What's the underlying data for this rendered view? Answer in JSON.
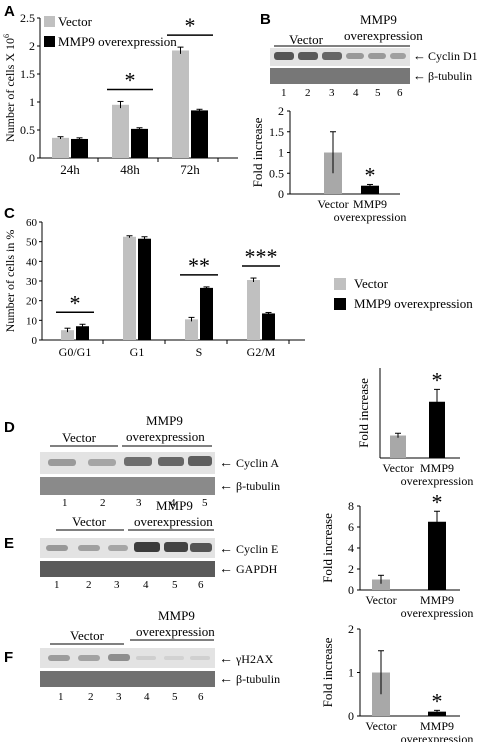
{
  "panels": {
    "A": {
      "letter": "A"
    },
    "B": {
      "letter": "B",
      "lanes": [
        "1",
        "2",
        "3",
        "4",
        "5",
        "6"
      ],
      "group1": "Vector",
      "group2_line1": "MMP9",
      "group2_line2": "overexpression",
      "band1_label": "Cyclin D1",
      "band2_label": "β-tubulin"
    },
    "C": {
      "letter": "C"
    },
    "D": {
      "letter": "D",
      "lanes": [
        "1",
        "2",
        "3",
        "4",
        "5"
      ],
      "group1": "Vector",
      "group2_line1": "MMP9",
      "group2_line2": "overexpression",
      "band1_label": "Cyclin A",
      "band2_label": "β-tubulin"
    },
    "E": {
      "letter": "E",
      "lanes": [
        "1",
        "2",
        "3",
        "4",
        "5",
        "6"
      ],
      "group1": "Vector",
      "group2_line1": "MMP9",
      "group2_line2": "overexpression",
      "band1_label": "Cyclin E",
      "band2_label": "GAPDH"
    },
    "F": {
      "letter": "F",
      "lanes": [
        "1",
        "2",
        "3",
        "4",
        "5",
        "6"
      ],
      "group1": "Vector",
      "group2_line1": "MMP9",
      "group2_line2": "overexpression",
      "band1_label": "γH2AX",
      "band2_label": "β-tubulin"
    }
  },
  "colors": {
    "vector": "#c0c0c0",
    "mmp9": "#000000",
    "vector_small": "#a8a8a8"
  },
  "chart_data": [
    {
      "id": "A",
      "type": "bar",
      "categories": [
        "24h",
        "48h",
        "72h"
      ],
      "series": [
        {
          "name": "Vector",
          "values": [
            0.36,
            0.95,
            1.92
          ],
          "errors": [
            0.02,
            0.06,
            0.06
          ]
        },
        {
          "name": "MMP9 overexpression",
          "values": [
            0.34,
            0.52,
            0.85
          ],
          "errors": [
            0.02,
            0.02,
            0.02
          ]
        }
      ],
      "ylabel_prefix": "Number of cells X 10",
      "ylabel_sup": "6",
      "ylim": [
        0,
        2.5
      ],
      "yticks": [
        "0",
        "0.5",
        "1",
        "1.5",
        "2",
        "2.5"
      ],
      "significance": [
        "",
        "*",
        "*"
      ],
      "legend": "top-left"
    },
    {
      "id": "B",
      "type": "bar",
      "categories_line1": [
        "Vector",
        "MMP9"
      ],
      "categories_line2": [
        "",
        "overexpression"
      ],
      "values": [
        1.0,
        0.2
      ],
      "errors": [
        0.5,
        0.03
      ],
      "ylabel": "Fold increase",
      "ylim": [
        0,
        2
      ],
      "yticks": [
        "0",
        "0.5",
        "1",
        "1.5",
        "2"
      ],
      "significance": [
        "",
        "*"
      ]
    },
    {
      "id": "C",
      "type": "bar",
      "categories": [
        "G0/G1",
        "G1",
        "S",
        "G2/M"
      ],
      "series": [
        {
          "name": "Vector",
          "values": [
            5,
            52.5,
            10.5,
            30.5
          ],
          "errors": [
            1.0,
            0.5,
            1.0,
            1.0
          ]
        },
        {
          "name": "MMP9 overexpression",
          "values": [
            7,
            51.5,
            26.5,
            13.5
          ],
          "errors": [
            1.0,
            1.0,
            0.5,
            0.5
          ]
        }
      ],
      "ylabel": "Number of cells in %",
      "ylim": [
        0,
        60
      ],
      "yticks": [
        "0",
        "10",
        "20",
        "30",
        "40",
        "50",
        "60"
      ],
      "significance": [
        "*",
        "",
        "**",
        "***"
      ],
      "legend": "right"
    },
    {
      "id": "D",
      "type": "bar",
      "categories_line1": [
        "Vector",
        "MMP9"
      ],
      "categories_line2": [
        "",
        "overexpression"
      ],
      "values": [
        1.0,
        2.5
      ],
      "errors": [
        0.1,
        0.55
      ],
      "ylabel": "Fold increase",
      "ylim": [
        0,
        4
      ],
      "yticks": [],
      "significance": [
        "",
        "*"
      ]
    },
    {
      "id": "E",
      "type": "bar",
      "categories_line1": [
        "Vector",
        "MMP9"
      ],
      "categories_line2": [
        "",
        "overexpression"
      ],
      "values": [
        1.0,
        6.5
      ],
      "errors": [
        0.4,
        1.0
      ],
      "ylabel": "Fold increase",
      "ylim": [
        0,
        8
      ],
      "yticks": [
        "0",
        "2",
        "4",
        "6",
        "8"
      ],
      "significance": [
        "",
        "*"
      ]
    },
    {
      "id": "F",
      "type": "bar",
      "categories_line1": [
        "Vector",
        "MMP9"
      ],
      "categories_line2": [
        "",
        "overexpression"
      ],
      "values": [
        1.0,
        0.1
      ],
      "errors": [
        0.5,
        0.03
      ],
      "ylabel": "Fold increase",
      "ylim": [
        0,
        2
      ],
      "yticks": [
        "0",
        "1",
        "2"
      ],
      "significance": [
        "",
        "*"
      ]
    }
  ]
}
